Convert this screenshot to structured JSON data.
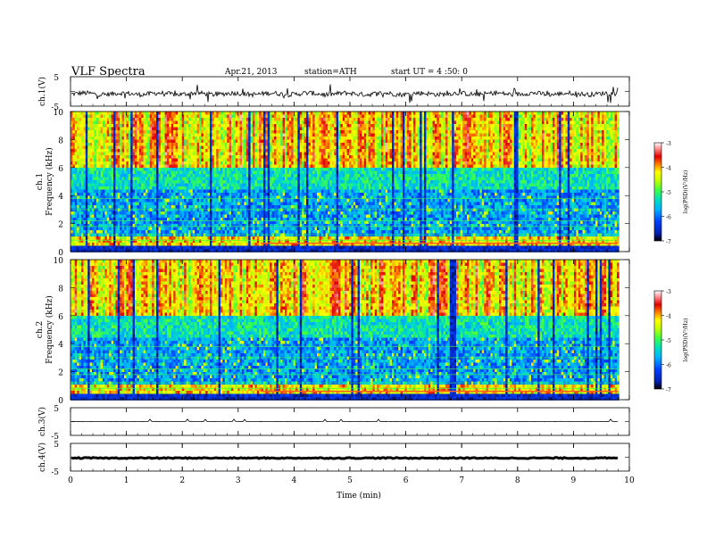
{
  "header": {
    "title": "VLF Spectra",
    "date": "Apr.21, 2013",
    "station": "station=ATH",
    "start": "start  UT =  4 :50: 0"
  },
  "colors": {
    "colormap": [
      "#000000",
      "#0020b0",
      "#0040ff",
      "#00b0ff",
      "#00e0c0",
      "#40ff40",
      "#c8ff00",
      "#ffff00",
      "#ff8000",
      "#e00000",
      "#ff9090",
      "#ffffff"
    ],
    "trace": "#000000"
  },
  "chart_data": [
    {
      "type": "line",
      "panel": "ch1",
      "ylabel": "ch.1(V)",
      "ylim": [
        -5,
        5
      ],
      "yticks": [
        "5",
        "-5"
      ],
      "series": [
        {
          "description_level": -0.8,
          "values_note": "noisy waveform, amplitude ~±1 V with sparse spikes"
        }
      ]
    },
    {
      "type": "heatmap",
      "panel": "ch1-spectrogram",
      "ylabel_lines": [
        "ch.1",
        "Frequency  (kHz)"
      ],
      "ylim": [
        0,
        10
      ],
      "yticks": [
        "0",
        "2",
        "4",
        "6",
        "8",
        "10"
      ],
      "colorbar": {
        "label": "log(PSD)(V²/Hz)",
        "range": [
          -7,
          -3
        ],
        "ticks": [
          "-3",
          "-4",
          "-5",
          "-6",
          "-7"
        ]
      }
    },
    {
      "type": "heatmap",
      "panel": "ch2-spectrogram",
      "ylabel_lines": [
        "ch.2",
        "Frequency  (kHz)"
      ],
      "ylim": [
        0,
        10
      ],
      "yticks": [
        "0",
        "2",
        "4",
        "6",
        "8",
        "10"
      ],
      "colorbar": {
        "label": "log(PSD)(V²/Hz)",
        "range": [
          -7,
          -3
        ],
        "ticks": [
          "-3",
          "-4",
          "-5",
          "-6",
          "-7"
        ]
      }
    },
    {
      "type": "line",
      "panel": "ch3",
      "ylabel": "ch.3(V)",
      "ylim": [
        -5,
        5
      ],
      "yticks": [
        "5",
        "-5"
      ],
      "level": 0.0
    },
    {
      "type": "line",
      "panel": "ch4",
      "ylabel": "ch.4(V)",
      "ylim": [
        -5,
        5
      ],
      "yticks": [
        "5",
        "-5"
      ],
      "level": -0.3
    }
  ],
  "xaxis": {
    "label": "Time  (min)",
    "range": [
      0,
      10
    ],
    "ticks": [
      "0",
      "1",
      "2",
      "3",
      "4",
      "5",
      "6",
      "7",
      "8",
      "9",
      "10"
    ],
    "data_end": 9.8
  }
}
